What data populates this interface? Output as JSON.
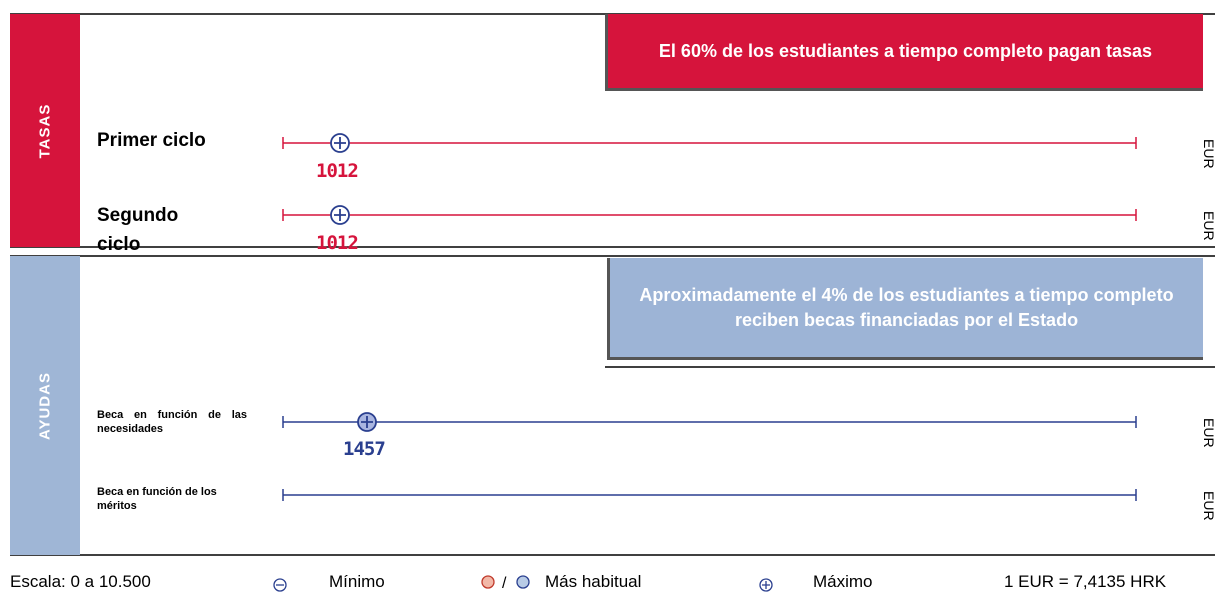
{
  "tasas": {
    "label": "TASAS",
    "note": "El 60% de los estudiantes a tiempo completo pagan tasas",
    "rows": [
      {
        "label": "Primer ciclo",
        "value": 1012,
        "unit": "EUR"
      },
      {
        "label": "Segundo ciclo",
        "value": 1012,
        "unit": "EUR"
      }
    ]
  },
  "ayudas": {
    "label": "AYUDAS",
    "note": "Aproximadamente el 4% de los estudiantes a tiempo completo reciben becas financiadas por el Estado",
    "rows": [
      {
        "label": "Beca en función de las necesidades",
        "value": 1457,
        "unit": "EUR"
      },
      {
        "label": "Beca en función de los méritos",
        "unit": "EUR"
      }
    ]
  },
  "legend": {
    "scale": "Escala: 0 a 10.500",
    "min": "Mínimo",
    "usual": "Más habitual",
    "max": "Máximo",
    "rate": "1 EUR = 7,4135 HRK"
  }
}
